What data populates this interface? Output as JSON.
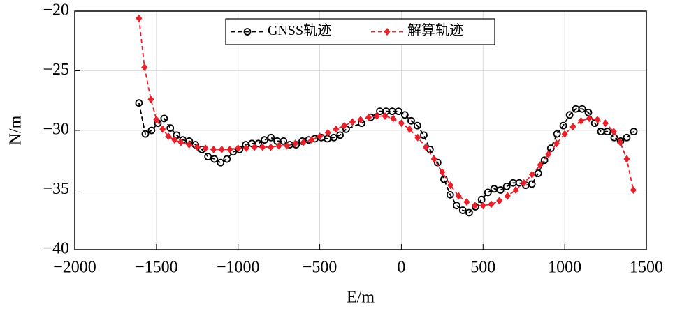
{
  "chart_data": {
    "type": "line",
    "xlabel": "E/m",
    "ylabel": "N/m",
    "xlim": [
      -2000,
      1500
    ],
    "ylim": [
      -40,
      -20
    ],
    "xticks": [
      {
        "value": -2000,
        "label": "−2000"
      },
      {
        "value": -1500,
        "label": "−1500"
      },
      {
        "value": -1000,
        "label": "−1000"
      },
      {
        "value": -500,
        "label": "−500"
      },
      0,
      500,
      1000,
      1500
    ],
    "yticks": [
      {
        "value": -40,
        "label": "−40"
      },
      {
        "value": -35,
        "label": "−35"
      },
      {
        "value": -30,
        "label": "−30"
      },
      {
        "value": -25,
        "label": "−25"
      },
      {
        "value": -20,
        "label": "−20"
      }
    ],
    "grid": true,
    "legend": "top",
    "series": [
      {
        "name": "GNSS轨迹",
        "color": "#000000",
        "marker": "circle",
        "x": [
          -1607,
          -1568,
          -1530,
          -1491,
          -1453,
          -1415,
          -1376,
          -1338,
          -1299,
          -1261,
          -1222,
          -1184,
          -1145,
          -1107,
          -1068,
          -1030,
          -991,
          -953,
          -915,
          -876,
          -838,
          -799,
          -761,
          -722,
          -684,
          -645,
          -607,
          -568,
          -530,
          -491,
          -453,
          -414,
          -376,
          -338,
          -244,
          -188,
          -132,
          -94,
          -56,
          -17,
          21,
          60,
          98,
          137,
          175,
          222,
          261,
          299,
          338,
          376,
          415,
          453,
          491,
          530,
          568,
          607,
          645,
          684,
          722,
          761,
          799,
          838,
          876,
          915,
          953,
          991,
          1030,
          1068,
          1107,
          1145,
          1184,
          1222,
          1261,
          1303,
          1342,
          1380,
          1423
        ],
        "values": [
          -27.7,
          -30.3,
          -30.0,
          -29.4,
          -29.0,
          -29.8,
          -30.4,
          -30.8,
          -30.9,
          -31.2,
          -31.6,
          -32.2,
          -32.4,
          -32.7,
          -32.4,
          -31.8,
          -31.6,
          -31.2,
          -31.1,
          -31.1,
          -30.8,
          -30.6,
          -30.9,
          -30.9,
          -31.2,
          -31.2,
          -30.9,
          -30.8,
          -30.7,
          -30.6,
          -30.7,
          -30.6,
          -30.4,
          -29.9,
          -29.4,
          -28.9,
          -28.4,
          -28.4,
          -28.4,
          -28.4,
          -28.7,
          -29.2,
          -29.6,
          -30.4,
          -31.6,
          -32.7,
          -34.1,
          -35.4,
          -36.3,
          -36.7,
          -36.9,
          -36.4,
          -35.8,
          -35.2,
          -34.9,
          -35.0,
          -34.7,
          -34.4,
          -34.4,
          -34.6,
          -34.5,
          -33.6,
          -32.5,
          -31.5,
          -30.3,
          -29.6,
          -28.7,
          -28.2,
          -28.2,
          -28.5,
          -29.4,
          -30.1,
          -30.1,
          -30.6,
          -30.9,
          -30.6,
          -30.1
        ]
      },
      {
        "name": "解算轨迹",
        "color": "#e8202a",
        "marker": "diamond",
        "x": [
          -1607,
          -1573,
          -1534,
          -1500,
          -1462,
          -1427,
          -1389,
          -1350,
          -1300,
          -1250,
          -1200,
          -1150,
          -1100,
          -1050,
          -1000,
          -950,
          -900,
          -850,
          -800,
          -750,
          -700,
          -650,
          -600,
          -550,
          -500,
          -450,
          -400,
          -350,
          -300,
          -250,
          -200,
          -150,
          -100,
          -50,
          0,
          50,
          100,
          150,
          200,
          250,
          300,
          350,
          400,
          450,
          500,
          550,
          600,
          650,
          700,
          750,
          800,
          850,
          900,
          950,
          1000,
          1050,
          1100,
          1150,
          1200,
          1250,
          1300,
          1340,
          1380,
          1420
        ],
        "values": [
          -20.6,
          -24.7,
          -27.4,
          -29.1,
          -29.9,
          -30.5,
          -30.8,
          -31.0,
          -31.2,
          -31.4,
          -31.5,
          -31.6,
          -31.6,
          -31.6,
          -31.5,
          -31.5,
          -31.4,
          -31.4,
          -31.4,
          -31.3,
          -31.3,
          -31.1,
          -31.0,
          -30.8,
          -30.5,
          -30.2,
          -29.9,
          -29.6,
          -29.3,
          -29.1,
          -28.9,
          -28.8,
          -28.8,
          -29.0,
          -29.4,
          -29.9,
          -30.6,
          -31.4,
          -32.4,
          -33.5,
          -34.6,
          -35.5,
          -36.0,
          -36.3,
          -36.3,
          -36.2,
          -35.9,
          -35.5,
          -35.0,
          -34.4,
          -33.7,
          -32.9,
          -32.0,
          -31.1,
          -30.3,
          -29.7,
          -29.2,
          -29.0,
          -29.1,
          -29.4,
          -30.1,
          -31.0,
          -32.4,
          -35.0
        ]
      }
    ]
  }
}
